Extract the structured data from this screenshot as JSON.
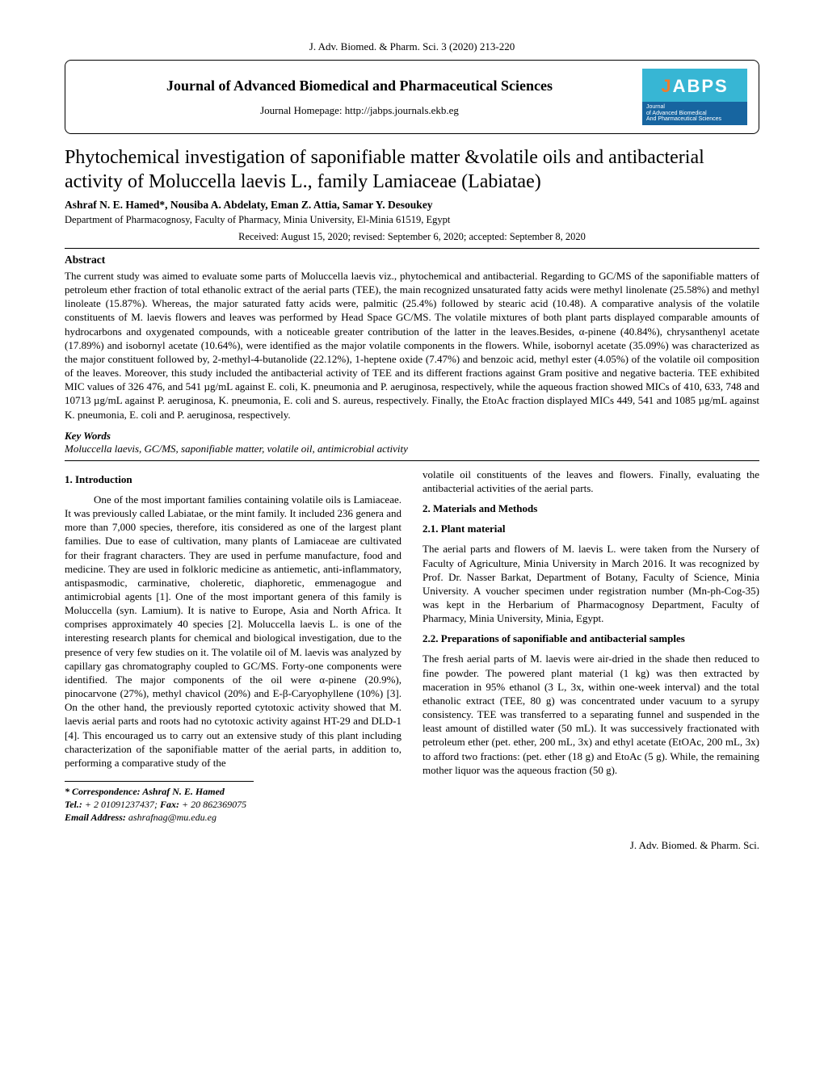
{
  "header_ref": "J. Adv. Biomed. & Pharm. Sci. 3 (2020) 213-220",
  "journal_box": {
    "title": "Journal of Advanced Biomedical and Pharmaceutical Sciences",
    "homepage_label": "Journal Homepage: http://jabps.journals.ekb.eg"
  },
  "badge": {
    "acronym_prefix": "J",
    "acronym_rest": "ABPS",
    "sub1": "Journal",
    "sub2": "of Advanced Biomedical",
    "sub3": "And Pharmaceutical Sciences",
    "top_bg": "#37b6d4",
    "bottom_bg": "#1765a0",
    "accent": "#f07b2b"
  },
  "paper_title": "Phytochemical investigation of saponifiable matter &volatile oils and antibacterial activity of Moluccella laevis L., family Lamiaceae (Labiatae)",
  "authors": "Ashraf N. E. Hamed*, Nousiba A. Abdelaty, Eman Z. Attia, Samar Y. Desoukey",
  "dept": "Department of Pharmacognosy, Faculty of Pharmacy, Minia University, El-Minia 61519, Egypt",
  "dates": "Received: August 15, 2020; revised: September 6, 2020; accepted: September 8, 2020",
  "abstract_title": "Abstract",
  "abstract": "The current study was aimed to evaluate some parts of Moluccella laevis viz., phytochemical and antibacterial. Regarding to GC/MS of the saponifiable matters of petroleum ether fraction of total ethanolic extract of the aerial parts (TEE), the main recognized unsaturated fatty acids were methyl linolenate (25.58%) and methyl linoleate (15.87%). Whereas, the major saturated fatty acids were, palmitic (25.4%) followed by stearic acid (10.48). A comparative analysis of the volatile constituents of M. laevis flowers and leaves was performed by Head Space GC/MS. The volatile mixtures of both plant parts displayed comparable amounts of hydrocarbons and oxygenated compounds, with a noticeable greater contribution of the latter in the leaves.Besides, α-pinene (40.84%), chrysanthenyl acetate (17.89%) and isobornyl acetate (10.64%), were identified as the major volatile components in the flowers. While, isobornyl acetate (35.09%) was characterized as the major constituent followed by, 2-methyl-4-butanolide (22.12%), 1-heptene oxide (7.47%) and benzoic acid, methyl ester (4.05%) of the volatile oil composition of the leaves. Moreover, this study included the antibacterial activity of TEE and its different fractions against Gram positive and negative bacteria. TEE exhibited MIC values of 326 476, and 541 µg/mL against E. coli, K. pneumonia and P. aeruginosa, respectively, while the aqueous fraction showed MICs of 410, 633, 748 and 10713 µg/mL against P. aeruginosa, K. pneumonia, E. coli and S. aureus, respectively. Finally, the EtoAc fraction displayed MICs 449, 541 and 1085 µg/mL against K. pneumonia, E. coli and P. aeruginosa, respectively.",
  "keywords_title": "Key Words",
  "keywords": "Moluccella laevis, GC/MS, saponifiable matter, volatile oil, antimicrobial activity",
  "left": {
    "s1_title": "1. Introduction",
    "p1": "One of the most important families containing volatile oils is Lamiaceae. It was previously called Labiatae, or the mint family. It included 236 genera and more than 7,000 species, therefore, itis considered as one of the largest plant families. Due to ease of cultivation, many plants of Lamiaceae are cultivated for their fragrant characters. They are used in perfume manufacture, food and medicine. They are used in folkloric medicine as antiemetic, anti-inflammatory, antispasmodic, carminative, choleretic, diaphoretic, emmenagogue and antimicrobial agents [1]. One of the most important genera of this family is Moluccella (syn. Lamium). It is native to Europe, Asia and North Africa. It comprises approximately 40 species [2]. Moluccella laevis L. is one of the interesting research plants for chemical and biological investigation, due to the presence of very few studies on it. The volatile oil of M. laevis was analyzed by capillary gas chromatography coupled to GC/MS. Forty-one components were identified. The major components of the oil were α-pinene (20.9%), pinocarvone (27%), methyl chavicol (20%) and E-β-Caryophyllene (10%) [3]. On the other hand, the previously reported cytotoxic activity showed that M. laevis aerial parts and roots had no cytotoxic activity against HT-29 and DLD-1 [4]. This encouraged us to carry out an extensive study of this plant including characterization of the saponifiable matter of the aerial parts, in addition to, performing a comparative study of the"
  },
  "right": {
    "p0": "volatile oil constituents of the leaves and flowers. Finally, evaluating the antibacterial activities of the aerial parts.",
    "s2_title": "2. Materials and Methods",
    "s21_title": "2.1. Plant material",
    "p21": "The aerial parts and flowers of M. laevis L. were taken from the Nursery of Faculty of Agriculture, Minia University in March 2016. It was recognized by Prof. Dr. Nasser Barkat, Department of Botany, Faculty of Science, Minia University. A voucher specimen under registration number (Mn-ph-Cog-35) was kept in the Herbarium of Pharmacognosy Department, Faculty of Pharmacy, Minia University, Minia, Egypt.",
    "s22_title": "2.2. Preparations of saponifiable and antibacterial samples",
    "p22": "The fresh aerial parts of M. laevis were air-dried in the shade then reduced to fine powder. The powered plant material (1 kg) was then extracted by maceration in 95% ethanol (3 L, 3x, within one-week interval) and the total ethanolic extract (TEE, 80 g) was concentrated under vacuum to a syrupy consistency. TEE was transferred to a separating funnel and suspended in the least amount of distilled water (50 mL). It was successively fractionated with petroleum ether (pet. ether, 200 mL, 3x) and ethyl acetate (EtOAc, 200 mL, 3x) to afford two fractions: (pet. ether (18 g) and EtoAc (5 g). While, the remaining mother liquor was the aqueous fraction (50 g)."
  },
  "footnote": {
    "corr_label": "* Correspondence:",
    "corr_name": " Ashraf N. E. Hamed",
    "tel_label": "Tel.:",
    "tel": " + 2 01091237437; ",
    "fax_label": "Fax:",
    "fax": " + 20 862369075",
    "email_label": "Email Address:",
    "email": " ashrafnag@mu.edu.eg"
  },
  "footer_ref": "J. Adv. Biomed. & Pharm. Sci."
}
